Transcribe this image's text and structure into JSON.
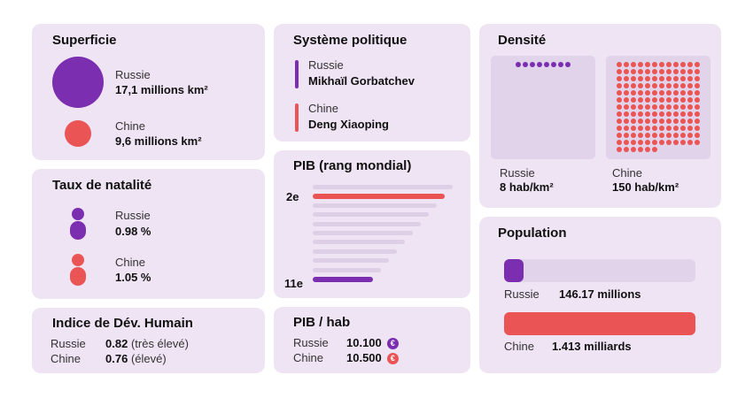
{
  "colors": {
    "card_bg": "#efe4f3",
    "russia": "#7b2fb0",
    "china": "#ea5455",
    "bar_grey": "#ddd0e6",
    "panel": "#e0d3ea"
  },
  "superficie": {
    "title": "Superficie",
    "russia": {
      "label": "Russie",
      "value": "17,1 millions km²"
    },
    "china": {
      "label": "Chine",
      "value": "9,6 millions km²"
    }
  },
  "natalite": {
    "title": "Taux de natalité",
    "russia": {
      "label": "Russie",
      "value": "0.98 %"
    },
    "china": {
      "label": "Chine",
      "value": "1.05 %"
    }
  },
  "idh": {
    "title": "Indice de Dév. Humain",
    "russia": {
      "label": "Russie",
      "value": "0.82",
      "note": "(très élevé)"
    },
    "china": {
      "label": "Chine",
      "value": "0.76",
      "note": "(élevé)"
    }
  },
  "politique": {
    "title": "Système politique",
    "russia": {
      "label": "Russie",
      "value": "Mikhaïl Gorbatchev"
    },
    "china": {
      "label": "Chine",
      "value": "Deng Xiaoping"
    }
  },
  "pib_rank": {
    "title": "PIB (rang mondial)",
    "china_rank_label": "2e",
    "russia_rank_label": "11e",
    "china_rank": 2,
    "russia_rank": 11
  },
  "pib_hab": {
    "title": "PIB / hab",
    "russia": {
      "label": "Russie",
      "value": "10.100"
    },
    "china": {
      "label": "Chine",
      "value": "10.500"
    },
    "currency_icon": "euro-icon"
  },
  "densite": {
    "title": "Densité",
    "russia": {
      "label": "Russie",
      "value": "8 hab/km²",
      "density": 8
    },
    "china": {
      "label": "Chine",
      "value": "150 hab/km²",
      "density": 150
    }
  },
  "population": {
    "title": "Population",
    "russia": {
      "label": "Russie",
      "value": "146.17 millions",
      "millions": 146.17
    },
    "china": {
      "label": "Chine",
      "value": "1.413 milliards",
      "millions": 1413
    }
  }
}
